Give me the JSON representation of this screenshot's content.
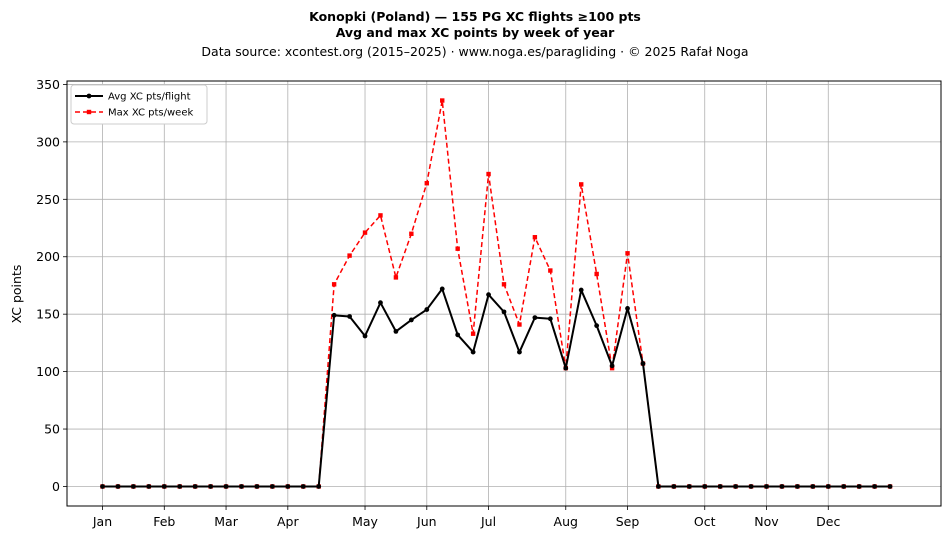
{
  "chart_data": {
    "type": "line",
    "title": "Konopki (Poland)  —  155 PG XC flights ≥100 pts",
    "subtitle": "Avg and max XC points by week of year",
    "source": "Data source: xcontest.org (2015–2025)  ·  www.noga.es/paragliding  ·  © 2025 Rafał Noga",
    "xlabel": "",
    "ylabel": "XC points",
    "ylim": [
      -17,
      353
    ],
    "yticks": [
      0,
      50,
      100,
      150,
      200,
      250,
      300,
      350
    ],
    "xlim": [
      -2.3,
      54.3
    ],
    "month_ticks": [
      {
        "label": "Jan",
        "week": 0
      },
      {
        "label": "Feb",
        "week": 4
      },
      {
        "label": "Mar",
        "week": 8
      },
      {
        "label": "Apr",
        "week": 12
      },
      {
        "label": "May",
        "week": 17
      },
      {
        "label": "Jun",
        "week": 21
      },
      {
        "label": "Jul",
        "week": 25
      },
      {
        "label": "Aug",
        "week": 30
      },
      {
        "label": "Sep",
        "week": 34
      },
      {
        "label": "Oct",
        "week": 39
      },
      {
        "label": "Nov",
        "week": 43
      },
      {
        "label": "Dec",
        "week": 47
      }
    ],
    "grid": true,
    "legend_position": "top-left",
    "x": [
      0,
      1,
      2,
      3,
      4,
      5,
      6,
      7,
      8,
      9,
      10,
      11,
      12,
      13,
      14,
      15,
      16,
      17,
      18,
      19,
      20,
      21,
      22,
      23,
      24,
      25,
      26,
      27,
      28,
      29,
      30,
      31,
      32,
      33,
      34,
      35,
      36,
      37,
      38,
      39,
      40,
      41,
      42,
      43,
      44,
      45,
      46,
      47,
      48,
      49,
      50,
      51
    ],
    "series": [
      {
        "name": "Avg XC pts/flight",
        "color": "#000000",
        "style": "solid",
        "marker": "circle",
        "values": [
          0,
          0,
          0,
          0,
          0,
          0,
          0,
          0,
          0,
          0,
          0,
          0,
          0,
          0,
          0,
          149,
          148,
          131,
          160,
          135,
          145,
          154,
          172,
          132,
          117,
          167,
          152,
          117,
          147,
          146,
          103,
          171,
          140,
          105,
          155,
          107,
          0,
          0,
          0,
          0,
          0,
          0,
          0,
          0,
          0,
          0,
          0,
          0,
          0,
          0,
          0,
          0
        ]
      },
      {
        "name": "Max XC pts/week",
        "color": "#ff0000",
        "style": "dashed",
        "marker": "square",
        "values": [
          0,
          0,
          0,
          0,
          0,
          0,
          0,
          0,
          0,
          0,
          0,
          0,
          0,
          0,
          0,
          176,
          201,
          221,
          236,
          182,
          220,
          264,
          336,
          207,
          133,
          272,
          176,
          141,
          217,
          188,
          103,
          263,
          185,
          103,
          203,
          107,
          0,
          0,
          0,
          0,
          0,
          0,
          0,
          0,
          0,
          0,
          0,
          0,
          0,
          0,
          0,
          0
        ]
      }
    ]
  }
}
